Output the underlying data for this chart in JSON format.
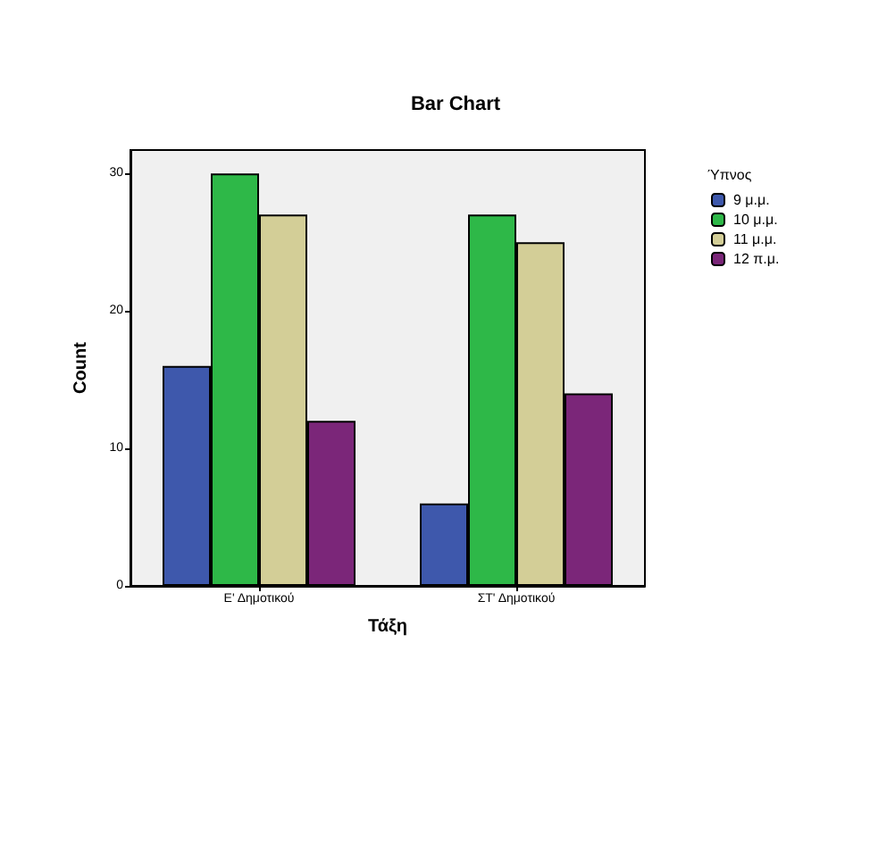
{
  "chart_data": {
    "type": "bar",
    "title": "Bar Chart",
    "xlabel": "Τάξη",
    "ylabel": "Count",
    "legend_title": "Ύπνος",
    "categories": [
      "Ε' Δημοτικού",
      "ΣΤ' Δημοτικού"
    ],
    "series": [
      {
        "name": "9 μ.μ.",
        "color": "#3e58ac",
        "values": [
          16,
          6
        ]
      },
      {
        "name": "10 μ.μ.",
        "color": "#2eb848",
        "values": [
          30,
          27
        ]
      },
      {
        "name": "11 μ.μ.",
        "color": "#d3ce97",
        "values": [
          27,
          25
        ]
      },
      {
        "name": "12 π.μ.",
        "color": "#7b2679",
        "values": [
          12,
          14
        ]
      }
    ],
    "ylim": [
      0,
      31.7
    ],
    "yticks": [
      0,
      10,
      20,
      30
    ],
    "grid": false,
    "legend": "right"
  }
}
